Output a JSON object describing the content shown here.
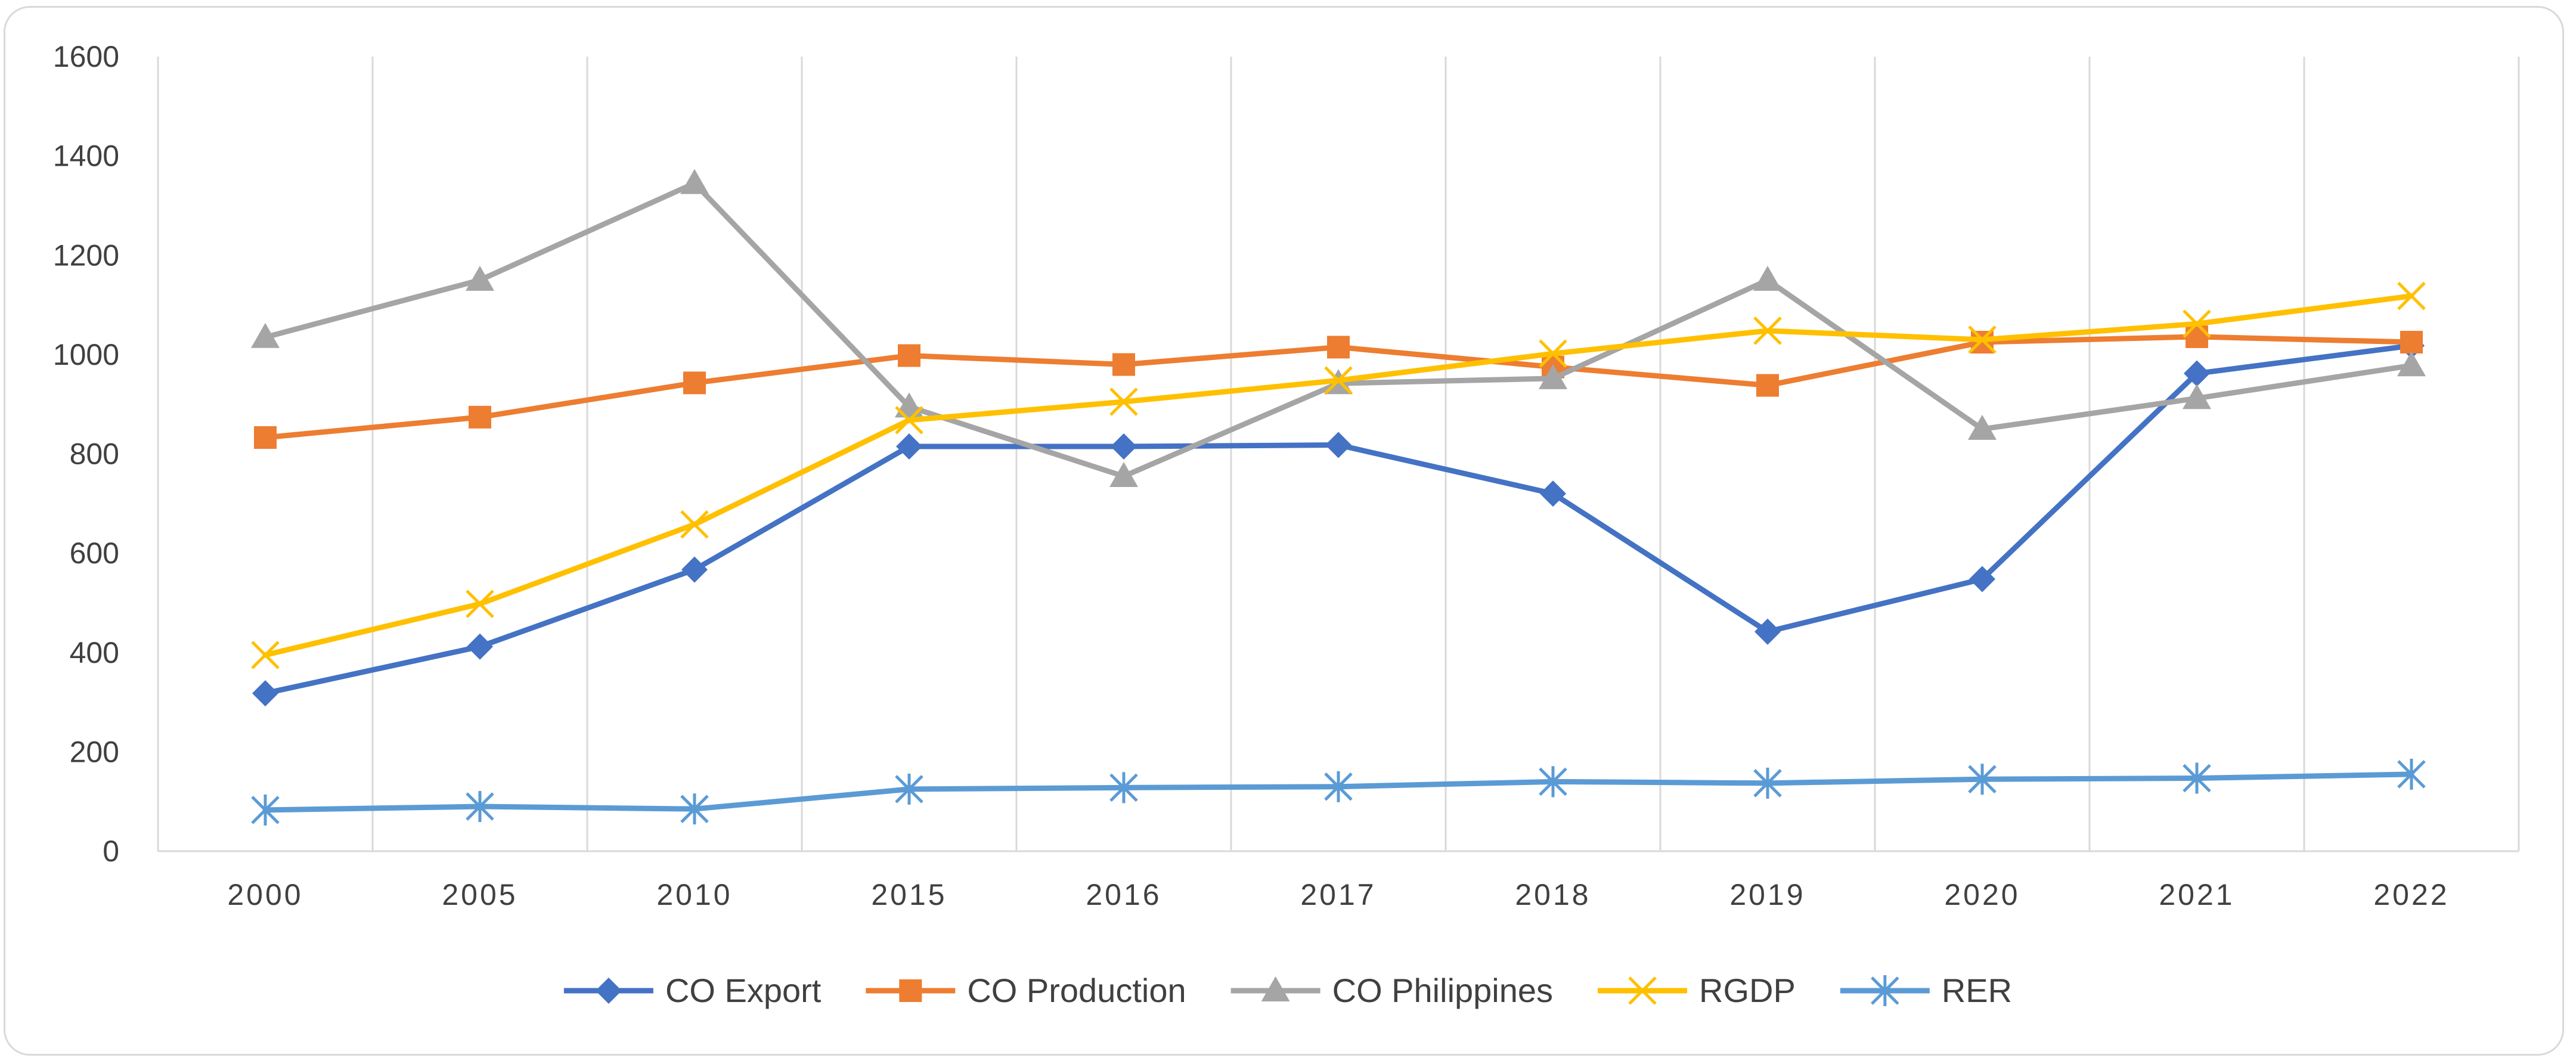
{
  "chart_data": {
    "type": "line",
    "title": "",
    "xlabel": "",
    "ylabel": "",
    "categories": [
      "2000",
      "2005",
      "2010",
      "2015",
      "2016",
      "2017",
      "2018",
      "2019",
      "2020",
      "2021",
      "2022"
    ],
    "ylim": [
      0,
      1600
    ],
    "yticks": [
      0,
      200,
      400,
      600,
      800,
      1000,
      1200,
      1400,
      1600
    ],
    "grid": "vertical",
    "legend": "bottom",
    "series": [
      {
        "name": "CO Export",
        "color": "#4472C4",
        "marker": "diamond",
        "values": [
          318,
          412,
          567,
          815,
          815,
          818,
          720,
          442,
          548,
          962,
          1018
        ]
      },
      {
        "name": "CO Production",
        "color": "#ED7D31",
        "marker": "square",
        "values": [
          833,
          874,
          943,
          998,
          980,
          1015,
          975,
          938,
          1025,
          1036,
          1025
        ]
      },
      {
        "name": "CO Philippines",
        "color": "#A5A5A5",
        "marker": "triangle",
        "values": [
          1035,
          1150,
          1345,
          895,
          755,
          942,
          952,
          1150,
          850,
          912,
          978
        ]
      },
      {
        "name": "RGDP",
        "color": "#FFC000",
        "marker": "x",
        "values": [
          395,
          498,
          658,
          868,
          905,
          948,
          1002,
          1048,
          1030,
          1062,
          1118
        ]
      },
      {
        "name": "RER",
        "color": "#5B9BD5",
        "marker": "star",
        "values": [
          83,
          90,
          85,
          125,
          128,
          130,
          140,
          137,
          145,
          147,
          155
        ]
      }
    ]
  }
}
